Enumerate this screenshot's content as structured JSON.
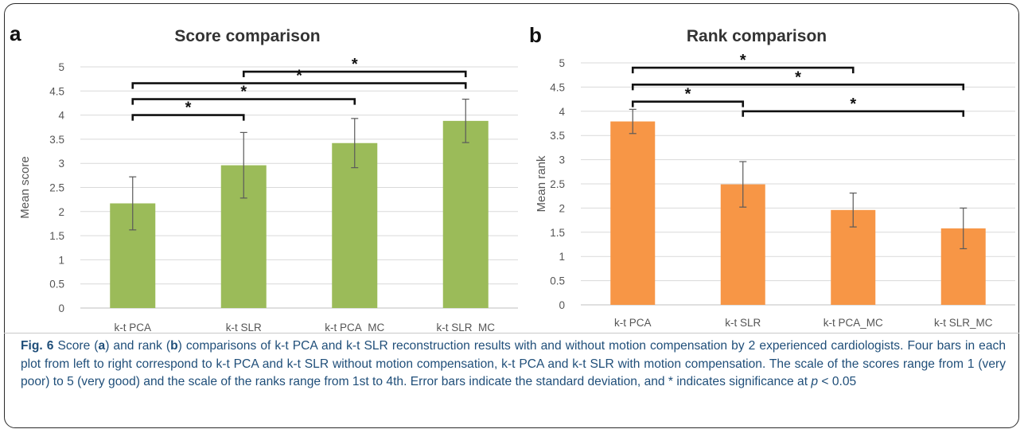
{
  "figure": {
    "charts": [
      {
        "panel": "a",
        "type": "bar",
        "title": "Score comparison",
        "ylabel": "Mean score",
        "xlabel": "",
        "ylim": [
          0,
          5
        ],
        "yticks": [
          "0",
          "0.5",
          "1",
          "1.5",
          "2",
          "2.5",
          "3",
          "3.5",
          "4",
          "4.5",
          "5"
        ],
        "categories": [
          "k-t PCA",
          "k-t SLR",
          "k-t PCA_MC",
          "k-t SLR_MC"
        ],
        "values": [
          2.17,
          2.96,
          3.42,
          3.88
        ],
        "errors": [
          0.55,
          0.68,
          0.51,
          0.45
        ],
        "bar_color": "#9bbb59",
        "grid": true,
        "significance": [
          {
            "from": 0,
            "to": 1,
            "label": "*",
            "level": 4.0
          },
          {
            "from": 0,
            "to": 2,
            "label": "*",
            "level": 4.33
          },
          {
            "from": 0,
            "to": 3,
            "label": "*",
            "level": 4.66
          },
          {
            "from": 1,
            "to": 3,
            "label": "*",
            "level": 4.9
          }
        ]
      },
      {
        "panel": "b",
        "type": "bar",
        "title": "Rank comparison",
        "ylabel": "Mean rank",
        "xlabel": "",
        "ylim": [
          0,
          5
        ],
        "yticks": [
          "0",
          "0.5",
          "1",
          "1.5",
          "2",
          "2.5",
          "3",
          "3.5",
          "4",
          "4.5",
          "5"
        ],
        "categories": [
          "k-t PCA",
          "k-t SLR",
          "k-t PCA_MC",
          "k-t SLR_MC"
        ],
        "values": [
          3.79,
          2.49,
          1.96,
          1.58
        ],
        "errors": [
          0.25,
          0.47,
          0.35,
          0.42
        ],
        "bar_color": "#f79646",
        "grid": true,
        "significance": [
          {
            "from": 0,
            "to": 1,
            "label": "*",
            "level": 4.2
          },
          {
            "from": 1,
            "to": 3,
            "label": "*",
            "level": 4.0
          },
          {
            "from": 0,
            "to": 3,
            "label": "*",
            "level": 4.55
          },
          {
            "from": 0,
            "to": 2,
            "label": "*",
            "level": 4.9
          }
        ]
      }
    ],
    "caption": {
      "fig_label": "Fig. 6",
      "text_1": " Score (",
      "a": "a",
      "text_2": ") and rank (",
      "b": "b",
      "text_3": ") comparisons of k-t PCA and k-t SLR reconstruction results with and without motion compensation by 2 experienced cardiologists. Four bars in each plot from left to right correspond to k-t PCA and k-t SLR without motion compensation, k-t PCA and k-t SLR with motion compensation. The scale of the scores range from 1 (very poor) to 5 (very good) and the scale of the ranks range from 1st to 4th. Error bars indicate the standard deviation, and * indicates significance at ",
      "p": "p",
      "text_4": " < 0.05"
    },
    "caption_color": "#1f4e79"
  }
}
